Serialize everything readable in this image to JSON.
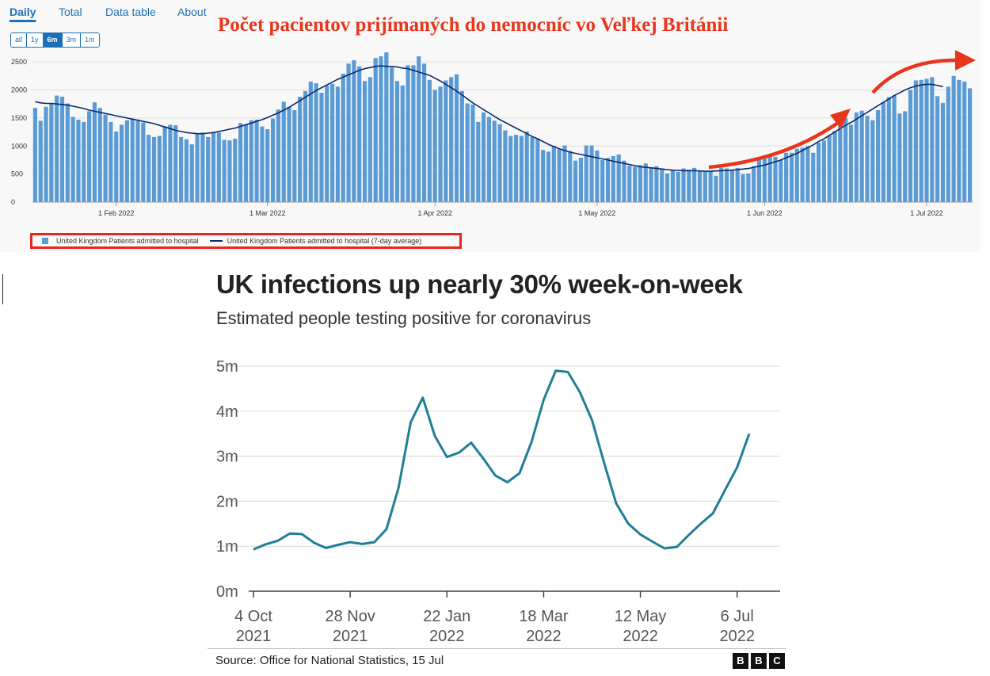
{
  "tabs": [
    {
      "label": "Daily",
      "active": true
    },
    {
      "label": "Total",
      "active": false
    },
    {
      "label": "Data table",
      "active": false
    },
    {
      "label": "About",
      "active": false
    }
  ],
  "range_buttons": [
    {
      "label": "all",
      "active": false
    },
    {
      "label": "1y",
      "active": false
    },
    {
      "label": "6m",
      "active": true
    },
    {
      "label": "3m",
      "active": false
    },
    {
      "label": "1m",
      "active": false
    }
  ],
  "annotation": {
    "title": "Počet pacientov prijímaných do nemocníc vo Veľkej Británii",
    "color": "#e8361d"
  },
  "legend": {
    "bars_label": "United Kingdom Patients admitted to hospital",
    "line_label": "United Kingdom Patients admitted to hospital (7-day average)"
  },
  "colors": {
    "bar": "#5b9bd5",
    "avg_line": "#0b2a6b",
    "bottom_line": "#1f7f96",
    "accent": "#1d70b8",
    "arrow": "#e8361d"
  },
  "bottom": {
    "title": "UK infections up nearly 30% week-on-week",
    "subtitle": "Estimated people testing positive for coronavirus",
    "source": "Source: Office for National Statistics, 15 Jul",
    "logo_letters": [
      "B",
      "B",
      "C"
    ]
  },
  "chart_data": [
    {
      "type": "bar",
      "title": "Počet pacientov prijímaných do nemocníc vo Veľkej Británii",
      "xlabel": "",
      "ylabel": "",
      "ylim": [
        0,
        2700
      ],
      "y_ticks": [
        0,
        500,
        1000,
        1500,
        2000,
        2500
      ],
      "x_tick_labels": [
        "1 Feb 2022",
        "1 Mar 2022",
        "1 Apr 2022",
        "1 May 2022",
        "1 Jun 2022",
        "1 Jul 2022"
      ],
      "x_tick_days": [
        15,
        43,
        74,
        104,
        135,
        165
      ],
      "start_day": 0,
      "series": [
        {
          "name": "United Kingdom Patients admitted to hospital",
          "values": [
            1680,
            1450,
            1700,
            1760,
            1900,
            1880,
            1760,
            1520,
            1470,
            1430,
            1620,
            1780,
            1680,
            1560,
            1430,
            1260,
            1380,
            1460,
            1490,
            1450,
            1420,
            1200,
            1160,
            1180,
            1350,
            1380,
            1370,
            1160,
            1120,
            1030,
            1220,
            1240,
            1160,
            1250,
            1240,
            1110,
            1100,
            1130,
            1410,
            1380,
            1460,
            1470,
            1350,
            1300,
            1490,
            1650,
            1790,
            1700,
            1640,
            1880,
            1980,
            2150,
            2120,
            1950,
            2080,
            2110,
            2060,
            2290,
            2470,
            2530,
            2420,
            2160,
            2230,
            2570,
            2600,
            2670,
            2400,
            2160,
            2080,
            2440,
            2440,
            2600,
            2470,
            2180,
            2000,
            2060,
            2170,
            2230,
            2280,
            1980,
            1760,
            1740,
            1430,
            1600,
            1520,
            1450,
            1390,
            1280,
            1180,
            1200,
            1180,
            1260,
            1160,
            1130,
            930,
            900,
            1000,
            940,
            1010,
            910,
            740,
            790,
            1010,
            1010,
            920,
            750,
            790,
            820,
            850,
            740,
            650,
            630,
            660,
            690,
            620,
            640,
            600,
            510,
            580,
            540,
            600,
            580,
            610,
            560,
            540,
            560,
            470,
            610,
            600,
            580,
            610,
            500,
            510,
            640,
            760,
            820,
            830,
            810,
            750,
            880,
            880,
            950,
            970,
            1000,
            880,
            1060,
            1100,
            1190,
            1270,
            1420,
            1500,
            1380,
            1600,
            1630,
            1540,
            1460,
            1640,
            1780,
            1870,
            1900,
            1580,
            1620,
            2000,
            2170,
            2180,
            2200,
            2230,
            1890,
            1770,
            2060,
            2250,
            2180,
            2150,
            2030
          ]
        },
        {
          "name": "United Kingdom Patients admitted to hospital (7-day average)",
          "values": [
            1790,
            1770,
            1760,
            1760,
            1750,
            1740,
            1730,
            1710,
            1690,
            1670,
            1640,
            1620,
            1600,
            1580,
            1560,
            1540,
            1520,
            1500,
            1480,
            1460,
            1440,
            1420,
            1400,
            1370,
            1340,
            1310,
            1280,
            1260,
            1240,
            1230,
            1220,
            1220,
            1230,
            1240,
            1260,
            1280,
            1300,
            1320,
            1350,
            1380,
            1410,
            1440,
            1470,
            1510,
            1550,
            1590,
            1640,
            1690,
            1750,
            1810,
            1870,
            1930,
            1990,
            2040,
            2090,
            2140,
            2190,
            2230,
            2270,
            2310,
            2350,
            2380,
            2400,
            2420,
            2430,
            2420,
            2420,
            2410,
            2390,
            2380,
            2350,
            2320,
            2290,
            2260,
            2210,
            2160,
            2100,
            2040,
            1980,
            1910,
            1840,
            1770,
            1710,
            1650,
            1590,
            1530,
            1470,
            1420,
            1370,
            1320,
            1270,
            1220,
            1170,
            1130,
            1080,
            1030,
            990,
            950,
            920,
            890,
            870,
            850,
            830,
            810,
            790,
            770,
            750,
            730,
            710,
            690,
            670,
            650,
            630,
            620,
            610,
            600,
            590,
            580,
            570,
            565,
            560,
            560,
            560,
            555,
            550,
            550,
            555,
            560,
            565,
            570,
            580,
            590,
            600,
            620,
            640,
            660,
            690,
            720,
            750,
            790,
            830,
            870,
            920,
            970,
            1020,
            1080,
            1130,
            1190,
            1250,
            1310,
            1370,
            1420,
            1480,
            1540,
            1600,
            1660,
            1720,
            1780,
            1840,
            1900,
            1950,
            2000,
            2040,
            2070,
            2090,
            2100,
            2100,
            2080,
            2060
          ]
        }
      ]
    },
    {
      "type": "line",
      "title": "UK infections up nearly 30% week-on-week",
      "subtitle": "Estimated people testing positive for coronavirus",
      "xlabel": "",
      "ylabel": "",
      "ylim": [
        0,
        5
      ],
      "y_unit": "m",
      "y_ticks": [
        0,
        1,
        2,
        3,
        4,
        5
      ],
      "y_tick_labels": [
        "0m",
        "1m",
        "2m",
        "3m",
        "4m",
        "5m"
      ],
      "x_ticks": [
        {
          "line1": "4 Oct",
          "line2": "2021",
          "week": 0
        },
        {
          "line1": "28 Nov",
          "line2": "2021",
          "week": 8
        },
        {
          "line1": "22 Jan",
          "line2": "2022",
          "week": 16
        },
        {
          "line1": "18 Mar",
          "line2": "2022",
          "week": 24
        },
        {
          "line1": "12 May",
          "line2": "2022",
          "week": 32
        },
        {
          "line1": "6 Jul",
          "line2": "2022",
          "week": 40
        }
      ],
      "series": [
        {
          "name": "Estimated people testing positive",
          "values": [
            0.93,
            1.04,
            1.12,
            1.28,
            1.27,
            1.08,
            0.96,
            1.03,
            1.09,
            1.05,
            1.09,
            1.38,
            2.3,
            3.75,
            4.3,
            3.45,
            2.98,
            3.08,
            3.3,
            2.95,
            2.57,
            2.42,
            2.62,
            3.32,
            4.25,
            4.9,
            4.87,
            4.42,
            3.8,
            2.85,
            1.95,
            1.5,
            1.26,
            1.1,
            0.95,
            0.98,
            1.25,
            1.5,
            1.73,
            2.25,
            2.75,
            3.5
          ]
        }
      ]
    }
  ]
}
